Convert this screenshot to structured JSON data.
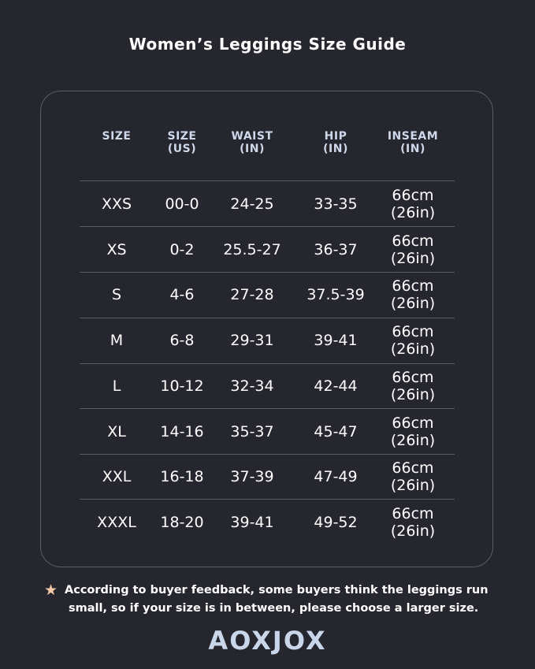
{
  "title": "Women’s Leggings Size Guide",
  "table": {
    "headers": [
      [
        "SIZE",
        ""
      ],
      [
        "SIZE",
        "(US)"
      ],
      [
        "WAIST",
        "(IN)"
      ],
      [
        "HIP",
        "(IN)"
      ],
      [
        "INSEAM",
        "(IN)"
      ]
    ],
    "rows": [
      [
        "XXS",
        "00-0",
        "24-25",
        "33-35",
        "66cm\n(26in)"
      ],
      [
        "XS",
        "0-2",
        "25.5-27",
        "36-37",
        "66cm\n(26in)"
      ],
      [
        "S",
        "4-6",
        "27-28",
        "37.5-39",
        "66cm\n(26in)"
      ],
      [
        "M",
        "6-8",
        "29-31",
        "39-41",
        "66cm\n(26in)"
      ],
      [
        "L",
        "10-12",
        "32-34",
        "42-44",
        "66cm\n(26in)"
      ],
      [
        "XL",
        "14-16",
        "35-37",
        "45-47",
        "66cm\n(26in)"
      ],
      [
        "XXL",
        "16-18",
        "37-39",
        "47-49",
        "66cm\n(26in)"
      ],
      [
        "XXXL",
        "18-20",
        "39-41",
        "49-52",
        "66cm\n(26in)"
      ]
    ]
  },
  "note": {
    "icon": "star-icon",
    "line1": "According to buyer feedback, some buyers think the leggings run",
    "line2": "small, so if your size is in between, please choose a larger size."
  },
  "brand": "AOXJOX",
  "colors": {
    "background": "#25262e",
    "header_text": "#cfd8ea",
    "star": "#f6c9a8",
    "logo": "#c9d6ea"
  }
}
